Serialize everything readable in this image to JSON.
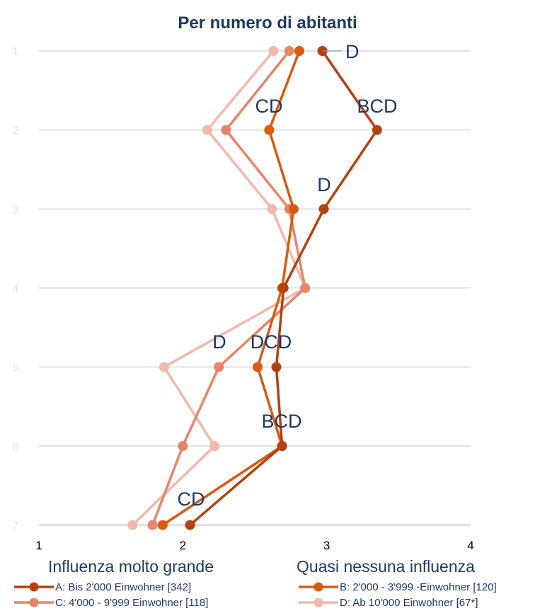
{
  "chart_data": {
    "type": "line",
    "orientation": "horizontal-values",
    "title": "Per numero di abitanti",
    "categories": [
      "1",
      "2",
      "3",
      "4",
      "5",
      "6",
      "7"
    ],
    "xlim": [
      1,
      4
    ],
    "xticks": [
      "1",
      "2",
      "3",
      "4"
    ],
    "xlabel_left": "Influenza molto grande",
    "xlabel_right": "Quasi nessuna influenza",
    "grid": true,
    "legend_position": "bottom",
    "series": [
      {
        "name": "A: Bis 2'000 Einwohner [342]",
        "color": "#b5400f",
        "values": [
          2.97,
          3.35,
          2.98,
          2.7,
          2.65,
          2.69,
          2.05
        ]
      },
      {
        "name": "B: 2'000 - 3'999 -Einwohner [120]",
        "color": "#d95a10",
        "values": [
          2.81,
          2.6,
          2.77,
          2.69,
          2.52,
          2.69,
          1.86
        ]
      },
      {
        "name": "C: 4'000 - 9'999 Einwohner [118]",
        "color": "#e8846a",
        "values": [
          2.74,
          2.3,
          2.74,
          2.85,
          2.25,
          2.0,
          1.79
        ]
      },
      {
        "name": "D: Ab 10'000 Einwohner [67*]",
        "color": "#f3b8aa",
        "values": [
          2.63,
          2.17,
          2.62,
          2.85,
          1.87,
          2.22,
          1.65
        ]
      }
    ],
    "annotations": [
      {
        "category": "1",
        "text": "D"
      },
      {
        "category": "2",
        "text": "CD"
      },
      {
        "category": "2",
        "text": "BCD"
      },
      {
        "category": "3",
        "text": "D"
      },
      {
        "category": "5",
        "text": "D"
      },
      {
        "category": "5",
        "text": "DCD"
      },
      {
        "category": "6",
        "text": "BCD"
      },
      {
        "category": "7",
        "text": "CD"
      }
    ]
  }
}
